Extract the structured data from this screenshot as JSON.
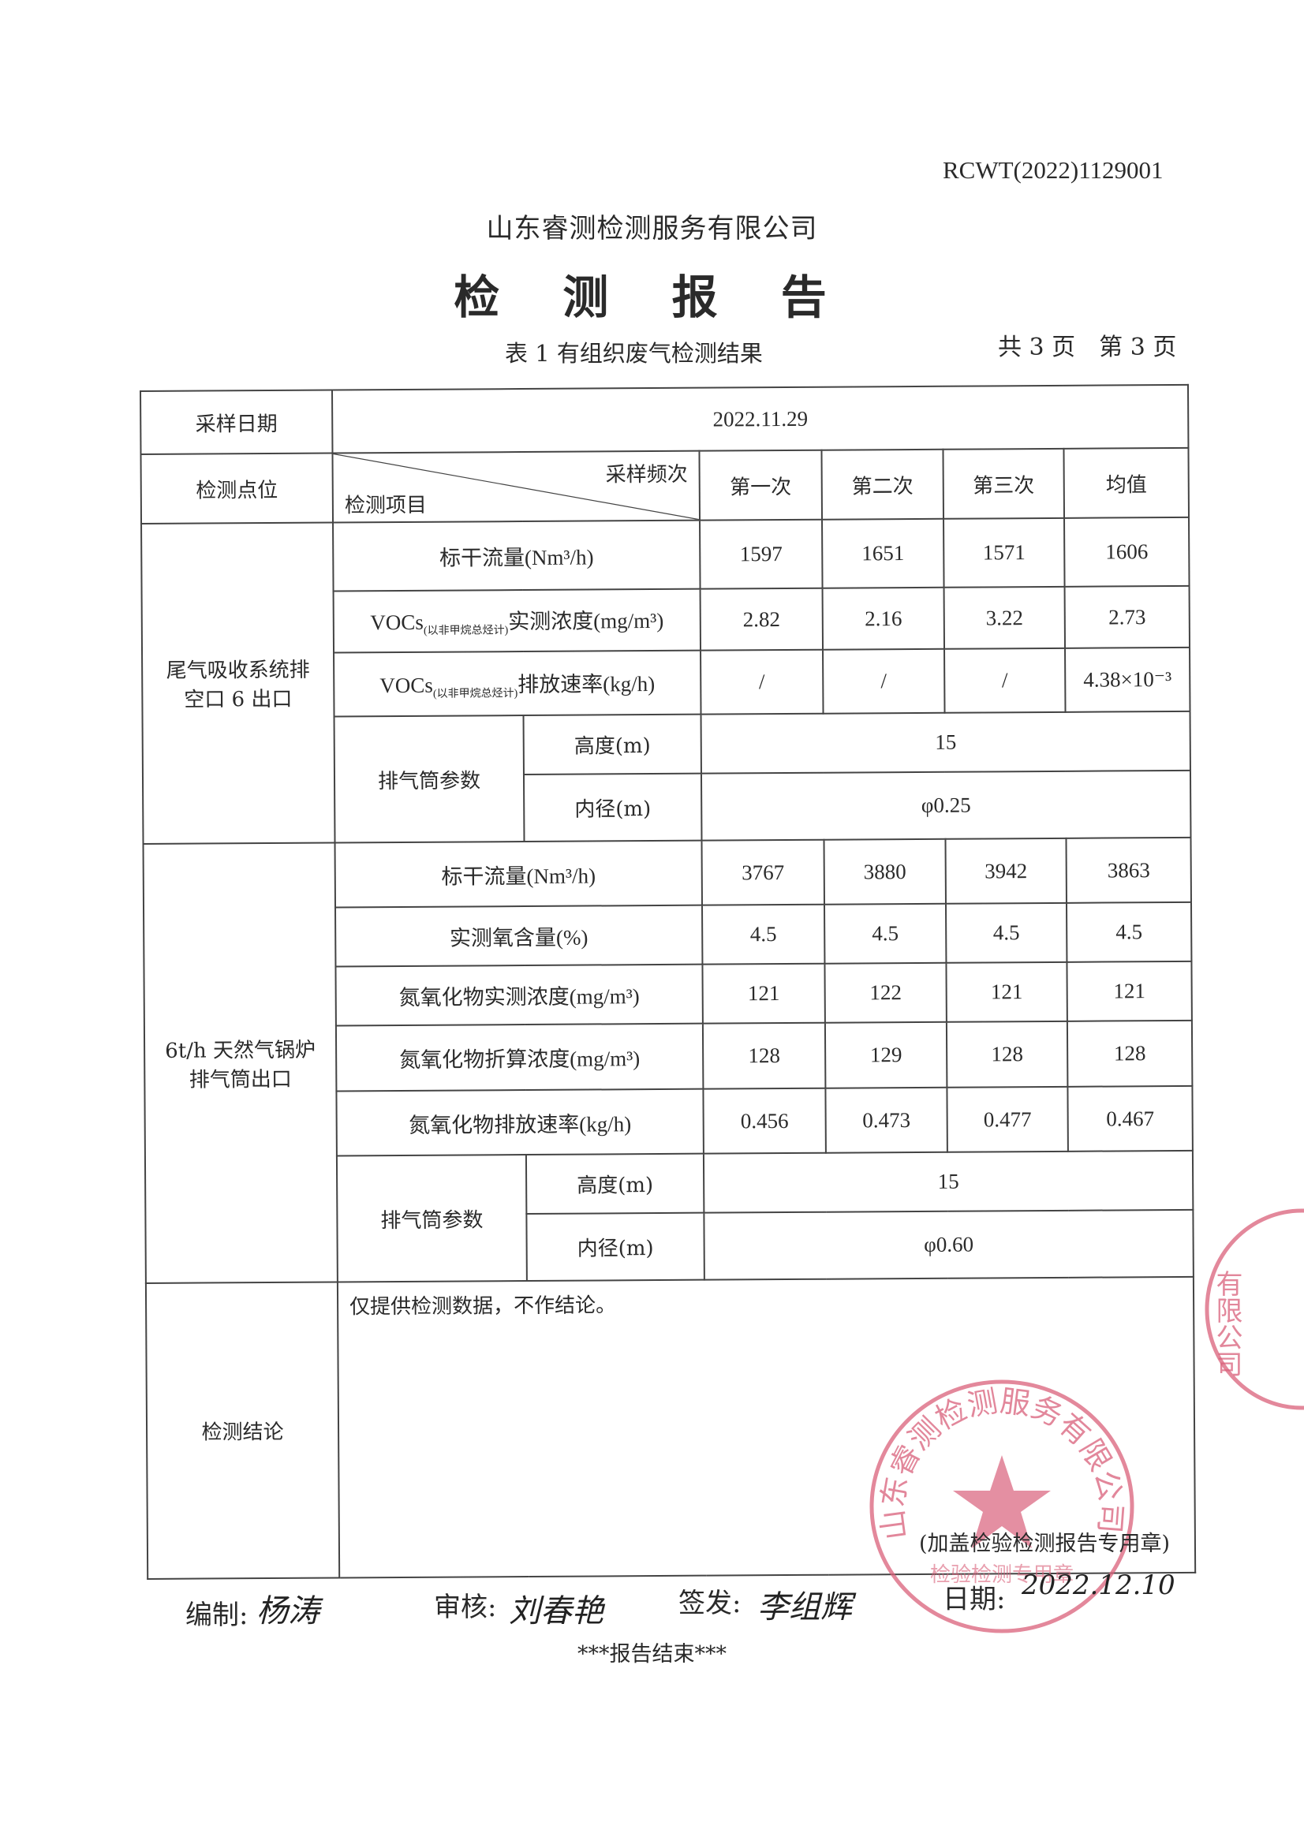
{
  "report_number": "RCWT(2022)1129001",
  "company": "山东睿测检测服务有限公司",
  "title": "检 测 报 告",
  "table_title": "表 1   有组织废气检测结果",
  "page_total": "共 3 页",
  "page_current": "第 3 页",
  "table": {
    "sampling_date_label": "采样日期",
    "sampling_date": "2022.11.29",
    "point_label": "检测点位",
    "frequency_label": "采样频次",
    "item_label": "检测项目",
    "columns": [
      "第一次",
      "第二次",
      "第三次",
      "均值"
    ],
    "sections": [
      {
        "point": "尾气吸收系统排空口 6 出口",
        "rows": [
          {
            "item": "标干流量(Nm³/h)",
            "values": [
              "1597",
              "1651",
              "1571",
              "1606"
            ]
          },
          {
            "item": "VOCs",
            "item_sub": "(以非甲烷总烃计)",
            "item_tail": "实测浓度(mg/m³)",
            "values": [
              "2.82",
              "2.16",
              "3.22",
              "2.73"
            ]
          },
          {
            "item": "VOCs",
            "item_sub": "(以非甲烷总烃计)",
            "item_tail": "排放速率(kg/h)",
            "values": [
              "/",
              "/",
              "/",
              "4.38×10⁻³"
            ]
          }
        ],
        "stack_label": "排气筒参数",
        "height_label": "高度(m)",
        "height": "15",
        "diameter_label": "内径(m)",
        "diameter": "φ0.25"
      },
      {
        "point": "6t/h 天然气锅炉排气筒出口",
        "rows": [
          {
            "item": "标干流量(Nm³/h)",
            "values": [
              "3767",
              "3880",
              "3942",
              "3863"
            ]
          },
          {
            "item": "实测氧含量(%)",
            "values": [
              "4.5",
              "4.5",
              "4.5",
              "4.5"
            ]
          },
          {
            "item": "氮氧化物实测浓度(mg/m³)",
            "values": [
              "121",
              "122",
              "121",
              "121"
            ]
          },
          {
            "item": "氮氧化物折算浓度(mg/m³)",
            "values": [
              "128",
              "129",
              "128",
              "128"
            ]
          },
          {
            "item": "氮氧化物排放速率(kg/h)",
            "values": [
              "0.456",
              "0.473",
              "0.477",
              "0.467"
            ]
          }
        ],
        "stack_label": "排气筒参数",
        "height_label": "高度(m)",
        "height": "15",
        "diameter_label": "内径(m)",
        "diameter": "φ0.60"
      }
    ],
    "conclusion_label": "检测结论",
    "conclusion": "仅提供检测数据，不作结论。"
  },
  "stamp_note": "(加盖检验检测报告专用章)",
  "stamp_text": "山东睿测检测服务有限公司",
  "stamp_sub": "检验检测专用章",
  "stamp_partial": "有限公司",
  "signatures": {
    "compiled_label": "编制:",
    "compiled_sig": "杨涛",
    "reviewed_label": "审核:",
    "reviewed_sig": "刘春艳",
    "issued_label": "签发:",
    "issued_sig": "李组辉",
    "date_label": "日期:",
    "date": "2022.12.10"
  },
  "end_text": "***报告结束***",
  "colors": {
    "ink": "#2a2a2a",
    "stamp": "#d9607a"
  }
}
